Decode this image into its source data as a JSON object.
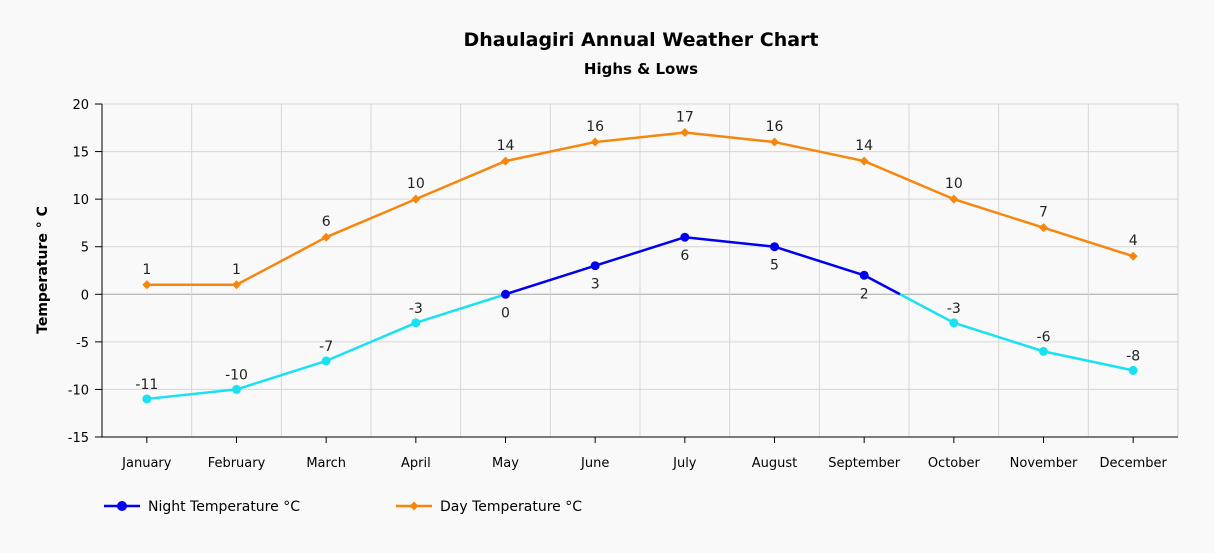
{
  "chart_data": {
    "type": "line",
    "title": "Dhaulagiri Annual Weather Chart",
    "subtitle": "Highs & Lows",
    "ylabel": "Temperature ° C",
    "xlabel": "",
    "ylim": [
      -15,
      20
    ],
    "yticks": [
      20,
      15,
      10,
      5,
      0,
      -5,
      -10,
      -15
    ],
    "grid": true,
    "legend_position": "bottom-left",
    "categories": [
      "January",
      "February",
      "March",
      "April",
      "May",
      "June",
      "July",
      "August",
      "September",
      "October",
      "November",
      "December"
    ],
    "series": [
      {
        "name": "Night Temperature °C",
        "values": [
          -11,
          -10,
          -7,
          -3,
          0,
          3,
          6,
          5,
          2,
          -3,
          -6,
          -8
        ],
        "color": "#0000ee",
        "negative_color": "#19e1f1",
        "marker": "circle"
      },
      {
        "name": "Day Temperature °C",
        "values": [
          1,
          1,
          6,
          10,
          14,
          16,
          17,
          16,
          14,
          10,
          7,
          4
        ],
        "color": "#f7860f",
        "marker": "diamond"
      }
    ]
  }
}
